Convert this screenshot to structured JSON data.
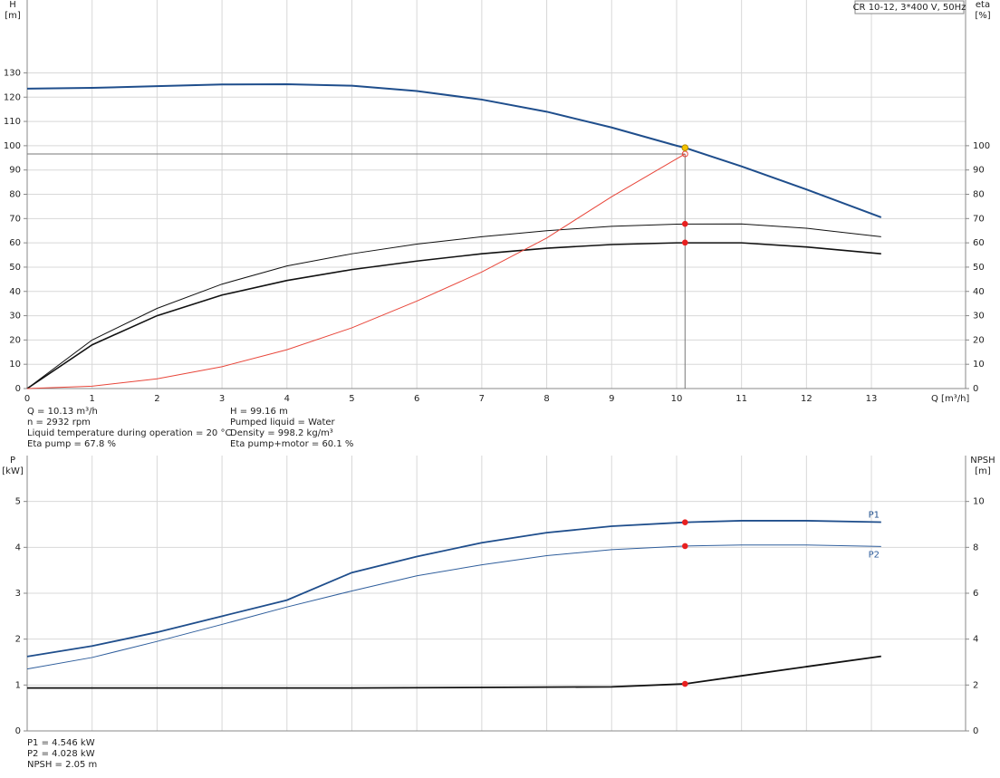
{
  "chart_data": [
    {
      "type": "line",
      "title": "CR 10-12, 3*400 V, 50Hz",
      "x_label": "Q [m³/h]",
      "y_label": [
        "H",
        "[m]"
      ],
      "y2_label": [
        "eta",
        "[%]"
      ],
      "xlim": [
        0,
        14.45
      ],
      "xticks": [
        0,
        1,
        2,
        3,
        4,
        5,
        6,
        7,
        8,
        9,
        10,
        11,
        12,
        13
      ],
      "ylim": [
        0,
        160
      ],
      "yticks": [
        0,
        10,
        20,
        30,
        40,
        50,
        60,
        70,
        80,
        90,
        100,
        110,
        120,
        130
      ],
      "y2lim": [
        0,
        160
      ],
      "y2ticks": [
        0,
        10,
        20,
        30,
        40,
        50,
        60,
        70,
        80,
        90,
        100
      ],
      "grid": true,
      "series": [
        {
          "color": "#1f4e8c",
          "width": 2,
          "x": [
            0,
            1,
            2,
            3,
            4,
            5,
            6,
            7,
            8,
            9,
            10,
            10.13,
            11,
            12,
            13.15
          ],
          "values": [
            123.5,
            123.8,
            124.5,
            125.2,
            125.3,
            124.7,
            122.5,
            119,
            114,
            107.5,
            100,
            99.16,
            91.5,
            82,
            70.5
          ]
        },
        {
          "color": "#111111",
          "width": 1,
          "axis": "y2",
          "x": [
            0,
            1,
            2,
            3,
            4,
            5,
            6,
            7,
            8,
            9,
            10,
            11,
            12,
            13.15
          ],
          "values": [
            0,
            20,
            33,
            43,
            50.5,
            55.5,
            59.5,
            62.5,
            65,
            66.8,
            67.7,
            67.8,
            66,
            62.5
          ]
        },
        {
          "color": "#111111",
          "width": 1.6,
          "axis": "y2",
          "x": [
            0,
            1,
            2,
            3,
            4,
            5,
            6,
            7,
            8,
            9,
            10,
            11,
            12,
            13.15
          ],
          "values": [
            0,
            18,
            30,
            38.5,
            44.5,
            49,
            52.5,
            55.5,
            57.8,
            59.3,
            60,
            60,
            58.3,
            55.5
          ]
        },
        {
          "color": "#e8463a",
          "width": 1,
          "guide_lines": true,
          "x": [
            0,
            1,
            2,
            3,
            4,
            5,
            6,
            7,
            8,
            9,
            10.13
          ],
          "values": [
            0,
            1,
            4,
            9,
            16,
            25,
            36,
            48,
            62,
            79,
            96.6
          ]
        }
      ],
      "markers": [
        {
          "x": 10.13,
          "y": 99.16,
          "color": "#f5c400"
        },
        {
          "x": 10.13,
          "y": 67.8,
          "color": "#e82020",
          "axis": "y2"
        },
        {
          "x": 10.13,
          "y": 60.1,
          "color": "#e82020",
          "axis": "y2"
        }
      ],
      "info": [
        [
          "Q = 10.13 m³/h",
          "n = 2932 rpm",
          "Liquid temperature during operation = 20 °C",
          "Eta pump = 67.8 %"
        ],
        [
          "H = 99.16 m",
          "Pumped liquid = Water",
          "Density = 998.2 kg/m³",
          "Eta pump+motor = 60.1 %"
        ]
      ]
    },
    {
      "type": "line",
      "y_label": [
        "P",
        "[kW]"
      ],
      "y2_label": [
        "NPSH",
        "[m]"
      ],
      "xlim": [
        0,
        14.45
      ],
      "ylim": [
        0,
        6
      ],
      "yticks": [
        0,
        1,
        2,
        3,
        4,
        5
      ],
      "y2lim": [
        0,
        12
      ],
      "y2ticks": [
        0,
        2,
        4,
        6,
        8,
        10
      ],
      "grid": true,
      "series": [
        {
          "name": "P1",
          "color": "#1f4e8c",
          "width": 1.8,
          "label_side": "above",
          "x": [
            0,
            1,
            2,
            3,
            4,
            5,
            6,
            7,
            8,
            9,
            10.13,
            11,
            12,
            13.15
          ],
          "values": [
            1.62,
            1.85,
            2.15,
            2.5,
            2.85,
            3.45,
            3.8,
            4.1,
            4.32,
            4.46,
            4.546,
            4.58,
            4.58,
            4.55
          ]
        },
        {
          "name": "P2",
          "color": "#2f5e9c",
          "width": 1,
          "label_side": "below",
          "x": [
            0,
            1,
            2,
            3,
            4,
            5,
            6,
            7,
            8,
            9,
            10.13,
            11,
            12,
            13.15
          ],
          "values": [
            1.35,
            1.6,
            1.95,
            2.32,
            2.7,
            3.05,
            3.38,
            3.62,
            3.82,
            3.95,
            4.028,
            4.05,
            4.05,
            4.02
          ]
        },
        {
          "color": "#111111",
          "width": 1.8,
          "axis": "y2",
          "x": [
            0,
            5,
            9,
            10.13,
            11,
            12,
            13.15
          ],
          "values": [
            1.87,
            1.87,
            1.92,
            2.05,
            2.4,
            2.8,
            3.25
          ]
        }
      ],
      "markers": [
        {
          "x": 10.13,
          "y": 4.546,
          "color": "#e82020"
        },
        {
          "x": 10.13,
          "y": 4.028,
          "color": "#e82020"
        },
        {
          "x": 10.13,
          "y": 2.05,
          "color": "#e82020",
          "axis": "y2"
        }
      ],
      "info": [
        [
          "P1 = 4.546 kW",
          "P2 = 4.028 kW",
          "NPSH = 2.05 m"
        ]
      ]
    }
  ]
}
